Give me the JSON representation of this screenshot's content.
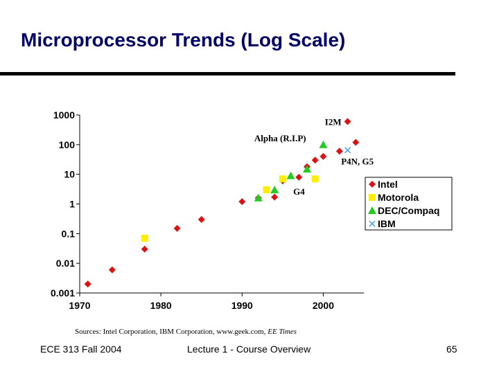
{
  "slide": {
    "title": "Microprocessor Trends (Log Scale)",
    "sources_text": "Sources: Intel Corporation, IBM Corporation, www.geek.com, ",
    "sources_italic": "EE Times",
    "footer_left": "ECE 313 Fall 2004",
    "footer_center": "Lecture 1 - Course Overview",
    "page_number": "65"
  },
  "colors": {
    "title": "#000066",
    "intel": "#dd1111",
    "motorola": "#ffee00",
    "dec": "#22cc22",
    "ibm": "#4499ee"
  },
  "chart_data": {
    "type": "scatter",
    "title": "",
    "xlabel": "",
    "ylabel": "",
    "yscale": "log",
    "xlim": [
      1970,
      2005
    ],
    "ylim": [
      0.001,
      1000
    ],
    "x_ticks": [
      "1970",
      "1980",
      "1990",
      "2000"
    ],
    "y_ticks": [
      "1000",
      "100",
      "10",
      "1",
      "0.1",
      "0.01",
      "0.001"
    ],
    "grid": false,
    "legend_position": "right",
    "series": [
      {
        "name": "Intel",
        "marker": "diamond",
        "color_key": "intel",
        "points": [
          [
            1971,
            0.002
          ],
          [
            1974,
            0.006
          ],
          [
            1978,
            0.03
          ],
          [
            1982,
            0.15
          ],
          [
            1985,
            0.3
          ],
          [
            1990,
            1.2
          ],
          [
            1992,
            1.6
          ],
          [
            1994,
            1.7
          ],
          [
            1995,
            6
          ],
          [
            1997,
            8
          ],
          [
            1998,
            18
          ],
          [
            1999,
            30
          ],
          [
            2000,
            40
          ],
          [
            2002,
            60
          ],
          [
            2003,
            600
          ],
          [
            2004,
            120
          ]
        ]
      },
      {
        "name": "Motorola",
        "marker": "square",
        "color_key": "motorola",
        "points": [
          [
            1978,
            0.07
          ],
          [
            1993,
            3
          ],
          [
            1995,
            7
          ],
          [
            1999,
            7
          ]
        ]
      },
      {
        "name": "DEC/Compaq",
        "marker": "triangle",
        "color_key": "dec",
        "points": [
          [
            1992,
            1.6
          ],
          [
            1994,
            3
          ],
          [
            1996,
            9
          ],
          [
            1998,
            15
          ],
          [
            2000,
            100
          ]
        ]
      },
      {
        "name": "IBM",
        "marker": "x",
        "color_key": "ibm",
        "points": [
          [
            2003,
            65
          ]
        ]
      }
    ],
    "annotations": [
      {
        "text": "I2M",
        "x": 2000.2,
        "y": 600
      },
      {
        "text": "Alpha (R.I.P)",
        "x": 1991.5,
        "y": 170
      },
      {
        "text": "P4N, G5",
        "x": 2002.2,
        "y": 28
      },
      {
        "text": "G4",
        "x": 1996.3,
        "y": 2.7
      }
    ]
  }
}
